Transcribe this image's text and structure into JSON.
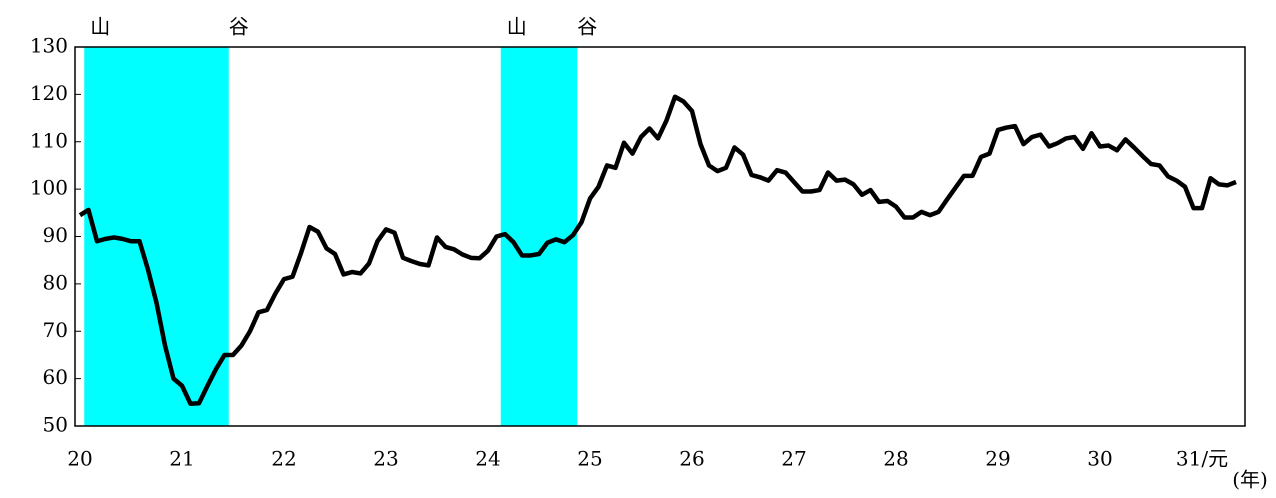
{
  "chart_data": {
    "type": "line",
    "x_label": "(年)",
    "categories": [
      "20",
      null,
      null,
      null,
      null,
      null,
      null,
      null,
      null,
      null,
      null,
      null,
      "21",
      null,
      null,
      null,
      null,
      null,
      null,
      null,
      null,
      null,
      null,
      null,
      "22",
      null,
      null,
      null,
      null,
      null,
      null,
      null,
      null,
      null,
      null,
      null,
      "23",
      null,
      null,
      null,
      null,
      null,
      null,
      null,
      null,
      null,
      null,
      null,
      "24",
      null,
      null,
      null,
      null,
      null,
      null,
      null,
      null,
      null,
      null,
      null,
      "25",
      null,
      null,
      null,
      null,
      null,
      null,
      null,
      null,
      null,
      null,
      null,
      "26",
      null,
      null,
      null,
      null,
      null,
      null,
      null,
      null,
      null,
      null,
      null,
      "27",
      null,
      null,
      null,
      null,
      null,
      null,
      null,
      null,
      null,
      null,
      null,
      "28",
      null,
      null,
      null,
      null,
      null,
      null,
      null,
      null,
      null,
      null,
      null,
      "29",
      null,
      null,
      null,
      null,
      null,
      null,
      null,
      null,
      null,
      null,
      null,
      "30",
      null,
      null,
      null,
      null,
      null,
      null,
      null,
      null,
      null,
      null,
      null,
      "31/元",
      null,
      null,
      null,
      null
    ],
    "values": [
      94.5,
      95.6,
      89,
      89.5,
      89.8,
      89.5,
      89,
      89,
      83,
      76,
      67,
      60,
      58.5,
      54.7,
      54.8,
      58.5,
      62,
      65,
      65,
      67,
      70,
      74,
      74.5,
      78,
      81,
      81.5,
      86.5,
      92,
      91,
      87.5,
      86.3,
      82,
      82.5,
      82.2,
      84.3,
      89,
      91.5,
      90.8,
      85.5,
      84.8,
      84.2,
      83.9,
      89.8,
      87.8,
      87.3,
      86.2,
      85.5,
      85.4,
      87,
      90,
      90.5,
      88.8,
      86,
      86,
      86.3,
      88.7,
      89.4,
      88.8,
      90.3,
      93,
      98,
      100.5,
      105,
      104.5,
      109.8,
      107.5,
      111,
      112.8,
      110.7,
      114.5,
      119.5,
      118.5,
      116.5,
      109.5,
      105,
      103.8,
      104.5,
      108.8,
      107.3,
      103,
      102.5,
      101.8,
      104,
      103.5,
      101.5,
      99.5,
      99.5,
      99.8,
      103.5,
      101.8,
      102,
      101,
      98.8,
      99.8,
      97.3,
      97.5,
      96.3,
      94,
      94,
      95.2,
      94.5,
      95.2,
      97.8,
      100.3,
      102.8,
      102.8,
      106.8,
      107.5,
      112.5,
      113,
      113.3,
      109.5,
      111,
      111.5,
      109,
      109.7,
      110.7,
      111,
      108.5,
      111.8,
      109,
      109.2,
      108.2,
      110.5,
      108.8,
      107,
      105.3,
      105,
      102.7,
      101.8,
      100.5,
      96,
      96,
      102.3,
      101,
      100.8,
      101.5
    ],
    "color": "#000000",
    "ylim": [
      50,
      130
    ],
    "yticks": [
      50,
      60,
      70,
      80,
      90,
      100,
      110,
      120,
      130
    ],
    "grid": false,
    "shaded_periods": [
      {
        "from": 1,
        "to": 17,
        "from_label": "山",
        "to_label": "谷",
        "color": "#00ffff"
      },
      {
        "from": 50,
        "to": 58,
        "from_label": "山",
        "to_label": "谷",
        "color": "#00ffff"
      }
    ]
  }
}
